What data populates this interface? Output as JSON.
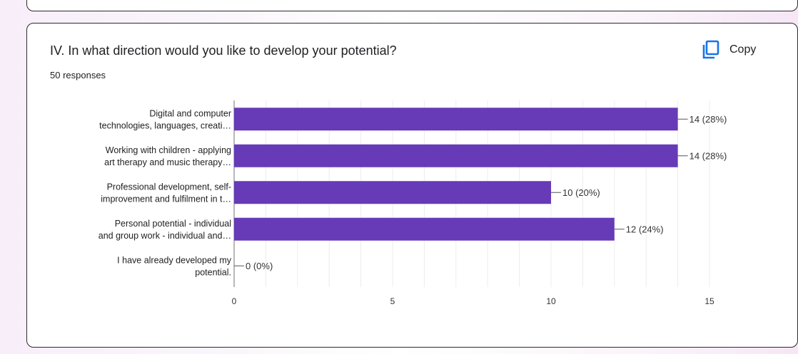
{
  "question": {
    "title": "IV. In what direction would you like to develop your potential?",
    "responses": "50 responses",
    "copy_label": "Copy"
  },
  "icons": {
    "copy": "copy-icon"
  },
  "colors": {
    "bar": "#673ab7",
    "accent": "#1a73e8",
    "grid": "#ececec",
    "axis": "#888888"
  },
  "chart_data": {
    "type": "bar",
    "orientation": "horizontal",
    "categories": [
      [
        "Digital and computer",
        "technologies, languages, creati…"
      ],
      [
        "Working with children - applying",
        "art therapy and music therapy…"
      ],
      [
        "Professional development, self-",
        "improvement and fulfilment in t…"
      ],
      [
        "Personal potential - individual",
        "and group work - individual and…"
      ],
      [
        "I have already developed my",
        "potential."
      ]
    ],
    "values": [
      14,
      14,
      10,
      12,
      0
    ],
    "data_labels": [
      "14 (28%)",
      "14 (28%)",
      "10 (20%)",
      "12 (24%)",
      "0 (0%)"
    ],
    "xlim": [
      0,
      15
    ],
    "xticks": [
      "0",
      "5",
      "10",
      "15"
    ],
    "grid": true,
    "legend": "none"
  }
}
